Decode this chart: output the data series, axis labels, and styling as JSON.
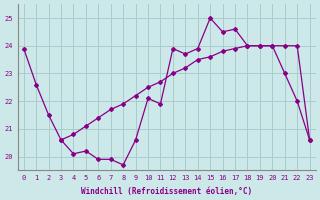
{
  "xlabel": "Windchill (Refroidissement éolien,°C)",
  "background_color": "#cce8e8",
  "grid_color": "#aacccc",
  "line_color": "#880088",
  "xlim": [
    -0.5,
    23.5
  ],
  "ylim": [
    19.5,
    25.5
  ],
  "yticks": [
    20,
    21,
    22,
    23,
    24,
    25
  ],
  "xticks": [
    0,
    1,
    2,
    3,
    4,
    5,
    6,
    7,
    8,
    9,
    10,
    11,
    12,
    13,
    14,
    15,
    16,
    17,
    18,
    19,
    20,
    21,
    22,
    23
  ],
  "main_x": [
    0,
    1,
    2,
    3,
    4,
    5,
    6,
    7,
    8,
    9,
    10,
    11,
    12,
    13,
    14,
    15,
    16,
    17,
    18,
    19,
    20,
    21,
    22,
    23
  ],
  "main_y": [
    23.9,
    22.6,
    21.5,
    20.6,
    20.1,
    20.2,
    19.9,
    19.9,
    19.7,
    20.6,
    22.1,
    21.9,
    23.9,
    23.7,
    23.9,
    25.0,
    24.5,
    24.6,
    24.0,
    24.0,
    24.0,
    23.0,
    22.0,
    20.6
  ],
  "trend_x": [
    3,
    4,
    5,
    6,
    7,
    8,
    9,
    10,
    11,
    12,
    13,
    14,
    15,
    16,
    17,
    18,
    19,
    20,
    21,
    22,
    23
  ],
  "trend_y": [
    20.6,
    20.8,
    21.1,
    21.4,
    21.7,
    21.9,
    22.2,
    22.5,
    22.7,
    23.0,
    23.2,
    23.5,
    23.6,
    23.8,
    23.9,
    24.0,
    24.0,
    24.0,
    24.0,
    24.0,
    20.6
  ]
}
